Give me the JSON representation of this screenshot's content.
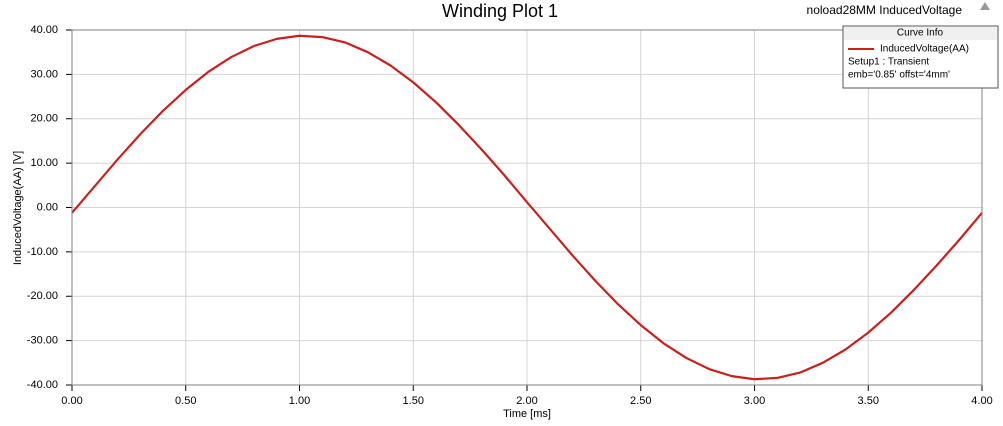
{
  "chart_data": {
    "type": "line",
    "title": "Winding Plot 1",
    "subtitle": "noload28MM InducedVoltage",
    "x_label": "Time [ms]",
    "y_label": "InducedVoltage(AA) [V]",
    "legend_title": "Curve Info",
    "legend_notes": [
      "Setup1 : Transient",
      "emb='0.85' offst='4mm'"
    ],
    "x": [
      0,
      0.1,
      0.2,
      0.3,
      0.4,
      0.5,
      0.6,
      0.7,
      0.8,
      0.9,
      1.0,
      1.1,
      1.2,
      1.3,
      1.4,
      1.5,
      1.6,
      1.7,
      1.8,
      1.9,
      2.0,
      2.1,
      2.2,
      2.3,
      2.4,
      2.5,
      2.6,
      2.7,
      2.8,
      2.9,
      3.0,
      3.1,
      3.2,
      3.3,
      3.4,
      3.5,
      3.6,
      3.7,
      3.8,
      3.9,
      4.0
    ],
    "series": [
      {
        "name": "InducedVoltage(AA)",
        "color": "#c8201e",
        "values": [
          -1.2,
          4.8,
          10.8,
          16.5,
          21.8,
          26.5,
          30.6,
          33.9,
          36.4,
          38.0,
          38.7,
          38.4,
          37.2,
          35.0,
          32.0,
          28.2,
          23.7,
          18.6,
          13.1,
          7.3,
          1.2,
          -4.8,
          -10.8,
          -16.5,
          -21.8,
          -26.5,
          -30.6,
          -33.9,
          -36.4,
          -38.0,
          -38.7,
          -38.4,
          -37.2,
          -35.0,
          -32.0,
          -28.2,
          -23.7,
          -18.6,
          -13.1,
          -7.3,
          -1.2
        ]
      }
    ],
    "xlim": [
      0,
      4
    ],
    "ylim": [
      -40,
      40
    ],
    "xticks": [
      {
        "value": 0,
        "label": "0.00"
      },
      {
        "value": 0.5,
        "label": "0.50"
      },
      {
        "value": 1,
        "label": "1.00"
      },
      {
        "value": 1.5,
        "label": "1.50"
      },
      {
        "value": 2,
        "label": "2.00"
      },
      {
        "value": 2.5,
        "label": "2.50"
      },
      {
        "value": 3,
        "label": "3.00"
      },
      {
        "value": 3.5,
        "label": "3.50"
      },
      {
        "value": 4,
        "label": "4.00"
      }
    ],
    "yticks": [
      {
        "value": -40,
        "label": "-40.00"
      },
      {
        "value": -30,
        "label": "-30.00"
      },
      {
        "value": -20,
        "label": "-20.00"
      },
      {
        "value": -10,
        "label": "-10.00"
      },
      {
        "value": 0,
        "label": "0.00"
      },
      {
        "value": 10,
        "label": "10.00"
      },
      {
        "value": 20,
        "label": "20.00"
      },
      {
        "value": 30,
        "label": "30.00"
      },
      {
        "value": 40,
        "label": "40.00"
      }
    ],
    "grid": true
  }
}
